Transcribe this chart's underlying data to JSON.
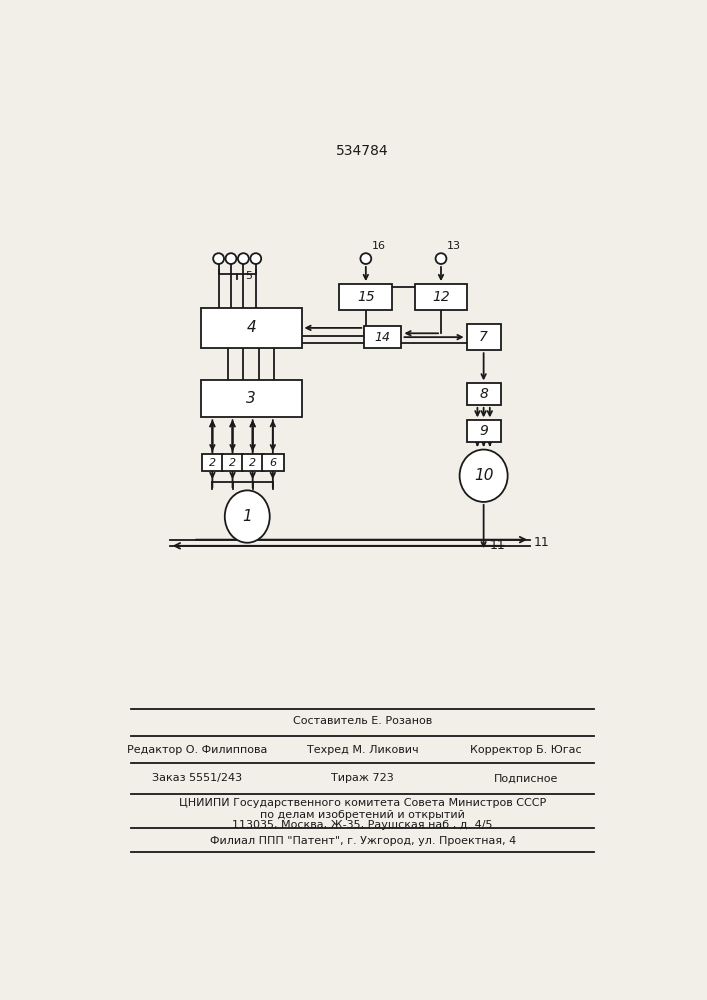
{
  "title": "534784",
  "bg_color": "#f2efe9",
  "line_color": "#1a1a1a",
  "box_color": "#ffffff",
  "text_color": "#1a1a1a",
  "footer": {
    "line1": "Составитель Е. Розанов",
    "line2_left": "Редактор О. Филиппова",
    "line2_mid": "Техред М. Ликович",
    "line2_right": "Корректор Б. Югас",
    "line3_left": "Заказ 5551/243",
    "line3_mid": "Тираж 723",
    "line3_right": "Подписное",
    "line4": "ЦНИИПИ Государственного комитета Совета Министров СССР",
    "line5": "по делам изобретений и открытий",
    "line6": "113035, Москва, Ж-35, Раушская наб., д. 4/5",
    "line7": "Филиал ППП \"Патент\", г. Ужгород, ул. Проектная, 4"
  }
}
